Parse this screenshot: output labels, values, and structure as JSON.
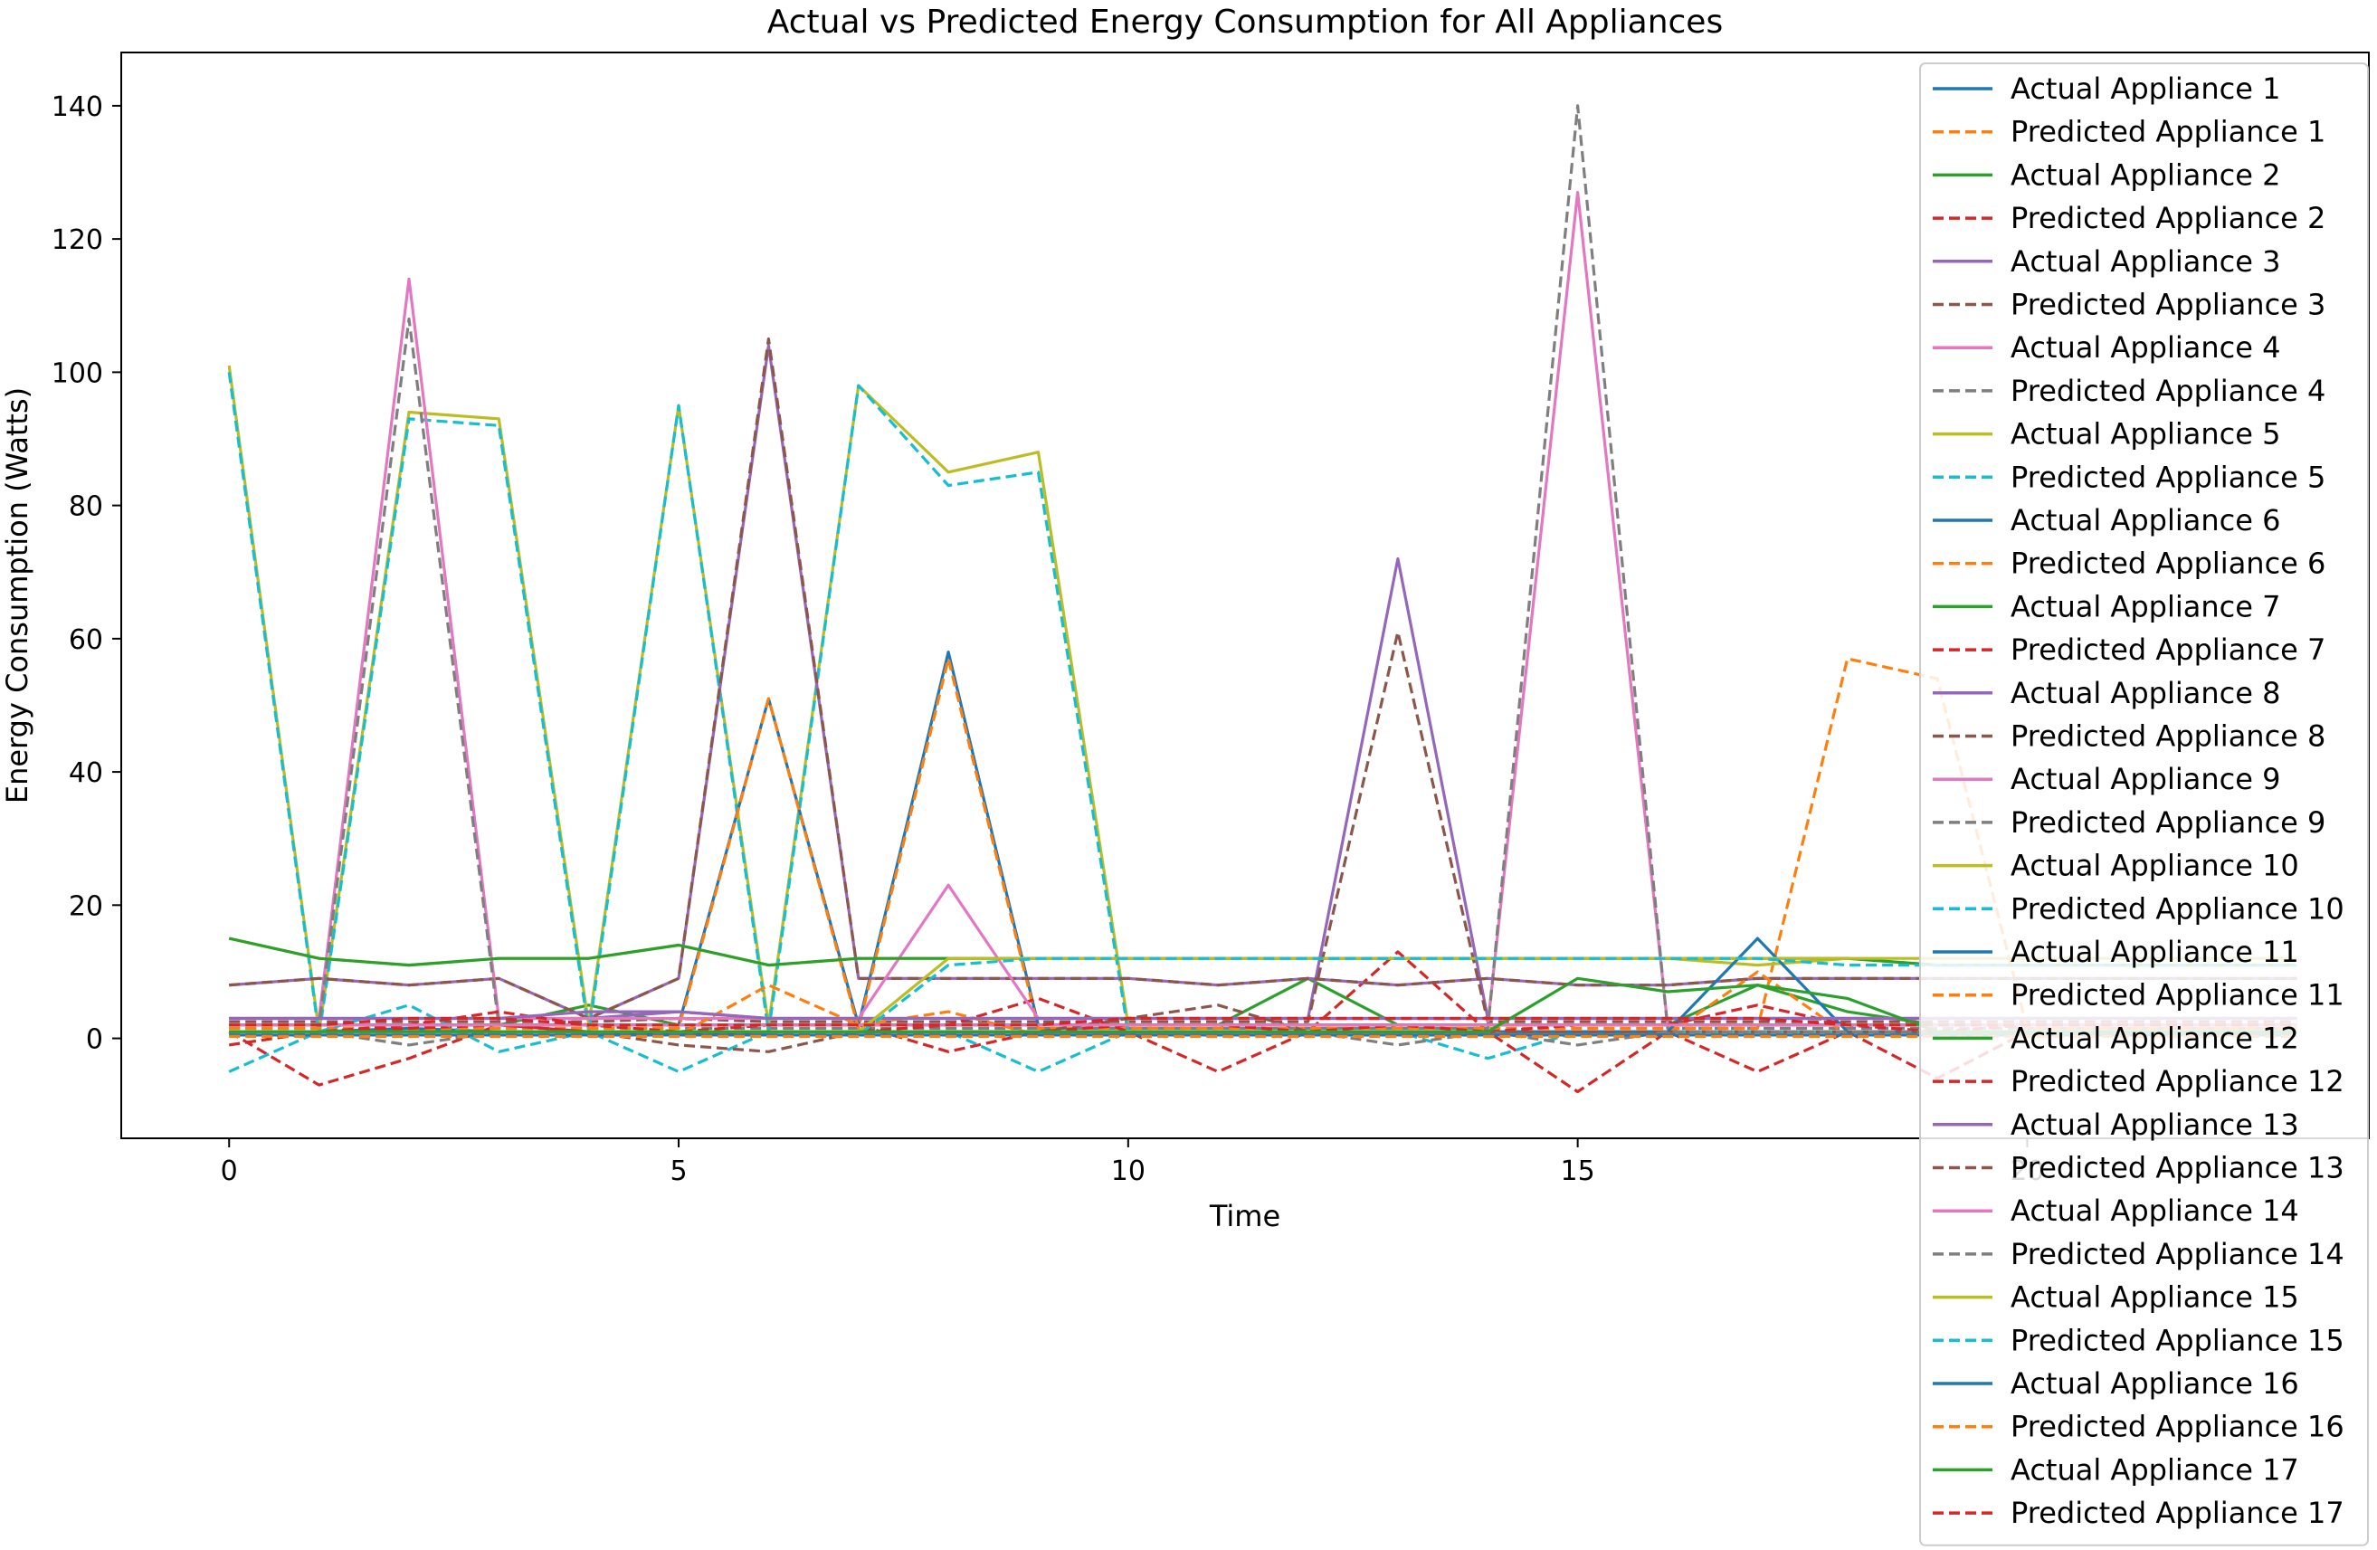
{
  "chart_data": {
    "type": "line",
    "title": "Actual vs Predicted Energy Consumption for All Appliances",
    "xlabel": "Time",
    "ylabel": "Energy Consumption (Watts)",
    "xlim": [
      -1.2,
      23.8
    ],
    "ylim": [
      -15,
      148
    ],
    "xticks": [
      0,
      5,
      10,
      15,
      20
    ],
    "yticks": [
      0,
      20,
      40,
      60,
      80,
      100,
      120,
      140
    ],
    "grid": false,
    "legend_position": "upper right",
    "x": [
      0,
      1,
      2,
      3,
      4,
      5,
      6,
      7,
      8,
      9,
      10,
      11,
      12,
      13,
      14,
      15,
      16,
      17,
      18,
      19,
      20,
      21,
      22,
      23
    ],
    "series": [
      {
        "name": "Actual Appliance 1",
        "color": "#1f77b4",
        "dash": false,
        "values": [
          1,
          1,
          1.5,
          1,
          1,
          1,
          1,
          1,
          1,
          1,
          1,
          1,
          1,
          1,
          1,
          1,
          1,
          1,
          1,
          1,
          1,
          1,
          1,
          1
        ]
      },
      {
        "name": "Predicted Appliance 1",
        "color": "#ff7f0e",
        "dash": true,
        "values": [
          0.5,
          0.8,
          1.2,
          0.8,
          0.6,
          0.5,
          0.7,
          0.8,
          0.6,
          0.7,
          0.8,
          0.6,
          0.9,
          0.8,
          0.7,
          0.8,
          0.6,
          0.9,
          0.7,
          0.8,
          0.6,
          0.8,
          0.7,
          0.6
        ]
      },
      {
        "name": "Actual Appliance 2",
        "color": "#2ca02c",
        "dash": false,
        "values": [
          2,
          2,
          2,
          2,
          5,
          2,
          2,
          2,
          2,
          2,
          2,
          2,
          9,
          2,
          2,
          2,
          2,
          8,
          4,
          2,
          2,
          2,
          2,
          2
        ]
      },
      {
        "name": "Predicted Appliance 2",
        "color": "#d62728",
        "dash": true,
        "values": [
          1,
          -7,
          -3,
          2,
          1,
          0.5,
          1,
          1,
          1,
          1,
          1,
          -5,
          1,
          13,
          1,
          -8,
          1,
          -5,
          1,
          -6,
          1,
          1,
          1,
          1
        ]
      },
      {
        "name": "Actual Appliance 3",
        "color": "#9467bd",
        "dash": false,
        "values": [
          3,
          3,
          3,
          3,
          3,
          4,
          3,
          3,
          3,
          3,
          3,
          3,
          3,
          72,
          3,
          3,
          3,
          3,
          3,
          3,
          3,
          3,
          3,
          3
        ]
      },
      {
        "name": "Predicted Appliance 3",
        "color": "#8c564b",
        "dash": true,
        "values": [
          2.5,
          2.5,
          2.5,
          2.5,
          2.5,
          3,
          2.5,
          2.5,
          2.5,
          2.5,
          2.5,
          2.5,
          2.5,
          61,
          2.5,
          2.5,
          2.5,
          2.5,
          2.5,
          2.5,
          2.5,
          2.5,
          2.5,
          2.5
        ]
      },
      {
        "name": "Actual Appliance 4",
        "color": "#e377c2",
        "dash": false,
        "values": [
          2,
          2,
          2,
          2,
          2,
          2,
          2,
          2,
          2,
          2,
          2,
          2,
          2,
          2,
          2,
          127,
          2,
          2,
          2,
          2,
          2,
          2,
          2,
          2
        ]
      },
      {
        "name": "Predicted Appliance 4",
        "color": "#7f7f7f",
        "dash": true,
        "values": [
          1.5,
          1.5,
          1.5,
          1.5,
          1.5,
          1.5,
          1.5,
          1.5,
          1.5,
          1.5,
          1.5,
          1.5,
          1.5,
          1.5,
          1.5,
          140,
          1.5,
          1.5,
          1.5,
          1.5,
          1.5,
          1.5,
          1.5,
          1.5
        ]
      },
      {
        "name": "Actual Appliance 5",
        "color": "#bcbd22",
        "dash": false,
        "values": [
          101,
          1,
          94,
          93,
          2,
          95,
          2,
          98,
          85,
          88,
          2,
          2,
          2,
          2,
          2,
          2,
          2,
          2,
          2,
          2,
          2,
          2,
          2,
          2
        ]
      },
      {
        "name": "Predicted Appliance 5",
        "color": "#17becf",
        "dash": true,
        "values": [
          100,
          0.5,
          93,
          92,
          1,
          95,
          1,
          98,
          83,
          85,
          1,
          1,
          1,
          1,
          1,
          1,
          1,
          1,
          1,
          1,
          1,
          1,
          1,
          1
        ]
      },
      {
        "name": "Actual Appliance 6",
        "color": "#1f77b4",
        "dash": false,
        "values": [
          2,
          2,
          2,
          2,
          2,
          2,
          51,
          2,
          58,
          2,
          2,
          2,
          2,
          2,
          2,
          2,
          2,
          2,
          2,
          2,
          2,
          2,
          2,
          2
        ]
      },
      {
        "name": "Predicted Appliance 6",
        "color": "#ff7f0e",
        "dash": true,
        "values": [
          1.5,
          1.5,
          1.5,
          1.5,
          1.5,
          1.5,
          51,
          1.5,
          57,
          1.5,
          1.5,
          1.5,
          1.5,
          1.5,
          1.5,
          1.5,
          1.5,
          1.5,
          57,
          54,
          1.5,
          1.5,
          1.5,
          1.5
        ]
      },
      {
        "name": "Actual Appliance 7",
        "color": "#2ca02c",
        "dash": false,
        "values": [
          2,
          2,
          2,
          2,
          2,
          2,
          2,
          2,
          2,
          2,
          2,
          2,
          2,
          2,
          2,
          2,
          2,
          2,
          2,
          2,
          2,
          2,
          2,
          2
        ]
      },
      {
        "name": "Predicted Appliance 7",
        "color": "#d62728",
        "dash": true,
        "values": [
          1,
          1,
          1.5,
          2,
          1,
          1,
          1,
          1,
          2,
          6,
          1,
          1,
          1,
          1,
          1,
          1,
          1,
          1,
          1,
          1,
          1,
          1,
          1,
          1
        ]
      },
      {
        "name": "Actual Appliance 8",
        "color": "#9467bd",
        "dash": false,
        "values": [
          8,
          9,
          8,
          9,
          3,
          9,
          104,
          9,
          9,
          9,
          9,
          8,
          9,
          8,
          9,
          8,
          8,
          9,
          9,
          9,
          9,
          9,
          9,
          9
        ]
      },
      {
        "name": "Predicted Appliance 8",
        "color": "#8c564b",
        "dash": true,
        "values": [
          8,
          9,
          8,
          9,
          3,
          9,
          105,
          9,
          9,
          9,
          9,
          8,
          9,
          8,
          9,
          8,
          8,
          9,
          9,
          9,
          9,
          9,
          9,
          9
        ]
      },
      {
        "name": "Actual Appliance 9",
        "color": "#e377c2",
        "dash": false,
        "values": [
          3,
          3,
          114,
          3,
          3,
          3,
          3,
          3,
          23,
          3,
          3,
          3,
          3,
          3,
          3,
          3,
          3,
          3,
          3,
          3,
          3,
          3,
          3,
          3
        ]
      },
      {
        "name": "Predicted Appliance 9",
        "color": "#7f7f7f",
        "dash": true,
        "values": [
          2,
          2,
          108,
          2,
          2,
          2,
          2,
          2,
          2,
          2,
          2,
          2,
          2,
          2,
          2,
          2,
          2,
          2,
          2,
          2,
          2,
          2,
          2,
          2
        ]
      },
      {
        "name": "Actual Appliance 10",
        "color": "#bcbd22",
        "dash": false,
        "values": [
          15,
          12,
          11,
          12,
          12,
          14,
          11,
          12,
          12,
          12,
          12,
          12,
          12,
          12,
          12,
          12,
          12,
          11,
          12,
          11,
          11,
          11,
          11,
          11
        ]
      },
      {
        "name": "Predicted Appliance 10",
        "color": "#17becf",
        "dash": true,
        "values": [
          -5,
          1,
          5,
          -2,
          1,
          -5,
          1,
          1,
          1,
          -5,
          1,
          1,
          1,
          1,
          -3,
          1,
          1,
          1,
          1,
          1,
          1,
          1,
          1,
          1
        ]
      },
      {
        "name": "Actual Appliance 11",
        "color": "#1f77b4",
        "dash": false,
        "values": [
          1,
          1,
          1,
          1,
          1,
          1,
          1,
          1,
          1,
          1,
          1,
          1,
          1,
          1,
          1,
          1,
          1,
          15,
          1,
          1,
          1,
          1,
          1,
          1
        ]
      },
      {
        "name": "Predicted Appliance 11",
        "color": "#ff7f0e",
        "dash": true,
        "values": [
          0.5,
          0.5,
          0.5,
          0.5,
          0.5,
          0.5,
          8,
          2,
          4,
          0.5,
          0.5,
          0.5,
          0.5,
          0.5,
          0.5,
          0.5,
          0.5,
          10,
          0.5,
          0.5,
          0.5,
          0.5,
          0.5,
          0.5
        ]
      },
      {
        "name": "Actual Appliance 12",
        "color": "#2ca02c",
        "dash": false,
        "values": [
          15,
          12,
          11,
          12,
          12,
          14,
          11,
          12,
          12,
          12,
          12,
          12,
          12,
          12,
          12,
          12,
          12,
          12,
          12,
          11,
          11,
          11,
          11,
          11
        ]
      },
      {
        "name": "Predicted Appliance 12",
        "color": "#d62728",
        "dash": true,
        "values": [
          -1,
          1,
          2,
          4,
          2,
          1,
          2,
          2,
          -2,
          1,
          2,
          2,
          1,
          2,
          1,
          2,
          2,
          5,
          2,
          1,
          2,
          2,
          2,
          2
        ]
      },
      {
        "name": "Actual Appliance 13",
        "color": "#9467bd",
        "dash": false,
        "values": [
          3,
          3,
          3,
          3,
          4,
          4,
          3,
          3,
          3,
          3,
          3,
          3,
          3,
          3,
          3,
          3,
          3,
          3,
          3,
          3,
          3,
          3,
          3,
          3
        ]
      },
      {
        "name": "Predicted Appliance 13",
        "color": "#8c564b",
        "dash": true,
        "values": [
          1,
          1,
          1,
          1,
          1,
          -1,
          -2,
          1,
          1,
          1,
          3,
          5,
          1,
          1,
          1,
          1,
          1,
          1,
          1,
          1,
          1,
          1,
          1,
          1
        ]
      },
      {
        "name": "Actual Appliance 14",
        "color": "#e377c2",
        "dash": false,
        "values": [
          2,
          2,
          2,
          2,
          2,
          2,
          2,
          2,
          2,
          2,
          2,
          2,
          2,
          2,
          2,
          2,
          2,
          2,
          2,
          2,
          2,
          2,
          2,
          2
        ]
      },
      {
        "name": "Predicted Appliance 14",
        "color": "#7f7f7f",
        "dash": true,
        "values": [
          1,
          1,
          -1,
          1,
          1,
          1,
          1,
          1,
          1,
          1,
          1,
          1,
          1,
          -1,
          1,
          -1,
          1,
          1,
          1,
          1,
          1,
          1,
          1,
          1
        ]
      },
      {
        "name": "Actual Appliance 15",
        "color": "#bcbd22",
        "dash": false,
        "values": [
          1,
          1,
          1,
          1,
          1,
          1,
          1,
          1,
          12,
          12,
          12,
          12,
          12,
          12,
          12,
          12,
          12,
          12,
          12,
          12,
          12,
          12,
          12,
          12
        ]
      },
      {
        "name": "Predicted Appliance 15",
        "color": "#17becf",
        "dash": true,
        "values": [
          0.5,
          0.5,
          0.5,
          0.5,
          0.5,
          0.5,
          0.5,
          0.5,
          11,
          12,
          12,
          12,
          12,
          12,
          12,
          12,
          12,
          12,
          11,
          11,
          11,
          11,
          11,
          11
        ]
      },
      {
        "name": "Actual Appliance 16",
        "color": "#1f77b4",
        "dash": false,
        "values": [
          0.5,
          0.5,
          0.5,
          0.5,
          0.5,
          0.5,
          0.5,
          0.5,
          0.5,
          0.5,
          0.5,
          0.5,
          0.5,
          0.5,
          0.5,
          0.5,
          0.5,
          0.5,
          0.5,
          0.5,
          0.5,
          0.5,
          0.5,
          0.5
        ]
      },
      {
        "name": "Predicted Appliance 16",
        "color": "#ff7f0e",
        "dash": true,
        "values": [
          0.3,
          0.3,
          0.3,
          0.3,
          0.3,
          0.3,
          0.3,
          0.3,
          0.3,
          0.3,
          0.3,
          0.3,
          0.3,
          0.3,
          0.3,
          0.3,
          0.3,
          0.3,
          0.3,
          0.3,
          0.3,
          0.3,
          0.3,
          0.3
        ]
      },
      {
        "name": "Actual Appliance 17",
        "color": "#2ca02c",
        "dash": false,
        "values": [
          1,
          1,
          1,
          1,
          1,
          1,
          1,
          1,
          1,
          1,
          1,
          1,
          1,
          1,
          1,
          9,
          7,
          8,
          6,
          1,
          1,
          1,
          1,
          1
        ]
      },
      {
        "name": "Predicted Appliance 17",
        "color": "#d62728",
        "dash": true,
        "values": [
          2,
          2,
          3,
          3,
          2,
          2,
          2,
          2,
          2,
          2,
          3,
          3,
          3,
          3,
          3,
          3,
          3,
          3,
          2,
          2,
          2,
          2,
          2,
          2
        ]
      }
    ]
  }
}
